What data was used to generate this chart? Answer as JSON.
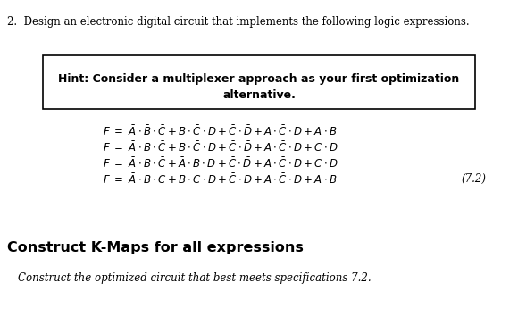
{
  "title": "2.  Design an electronic digital circuit that implements the following logic expressions.",
  "hint_line1": "Hint: Consider a multiplexer approach as your first optimization",
  "hint_line2": "alternative.",
  "equations": [
    "$F \\ = \\ \\bar{A}\\cdot\\bar{B}\\cdot\\bar{C}+B\\cdot\\bar{C}\\cdot D+\\bar{C}\\cdot\\bar{D}+A\\cdot\\bar{C}\\cdot D+A\\cdot B$",
    "$F \\ = \\ \\bar{A}\\cdot B\\cdot\\bar{C}+B\\cdot\\bar{C}\\cdot D+\\bar{C}\\cdot\\bar{D}+A\\cdot\\bar{C}\\cdot D+C\\cdot D$",
    "$F \\ = \\ \\bar{A}\\cdot B\\cdot\\bar{C}+\\bar{A}\\cdot B\\cdot D+\\bar{C}\\cdot\\bar{D}+A\\cdot\\bar{C}\\cdot D+C\\cdot D$",
    "$F \\ = \\ \\bar{A}\\cdot B\\cdot C+B\\cdot C\\cdot D+\\bar{C}\\cdot D+A\\cdot\\bar{C}\\cdot D+A\\cdot B$"
  ],
  "label72": "(7.2)",
  "construct_kmap": "Construct K-Maps for all expressions",
  "construct_circuit": "Construct the optimized circuit that best meets specifications 7.2.",
  "bg_color": "#ffffff",
  "text_color": "#000000",
  "box_color": "#000000"
}
